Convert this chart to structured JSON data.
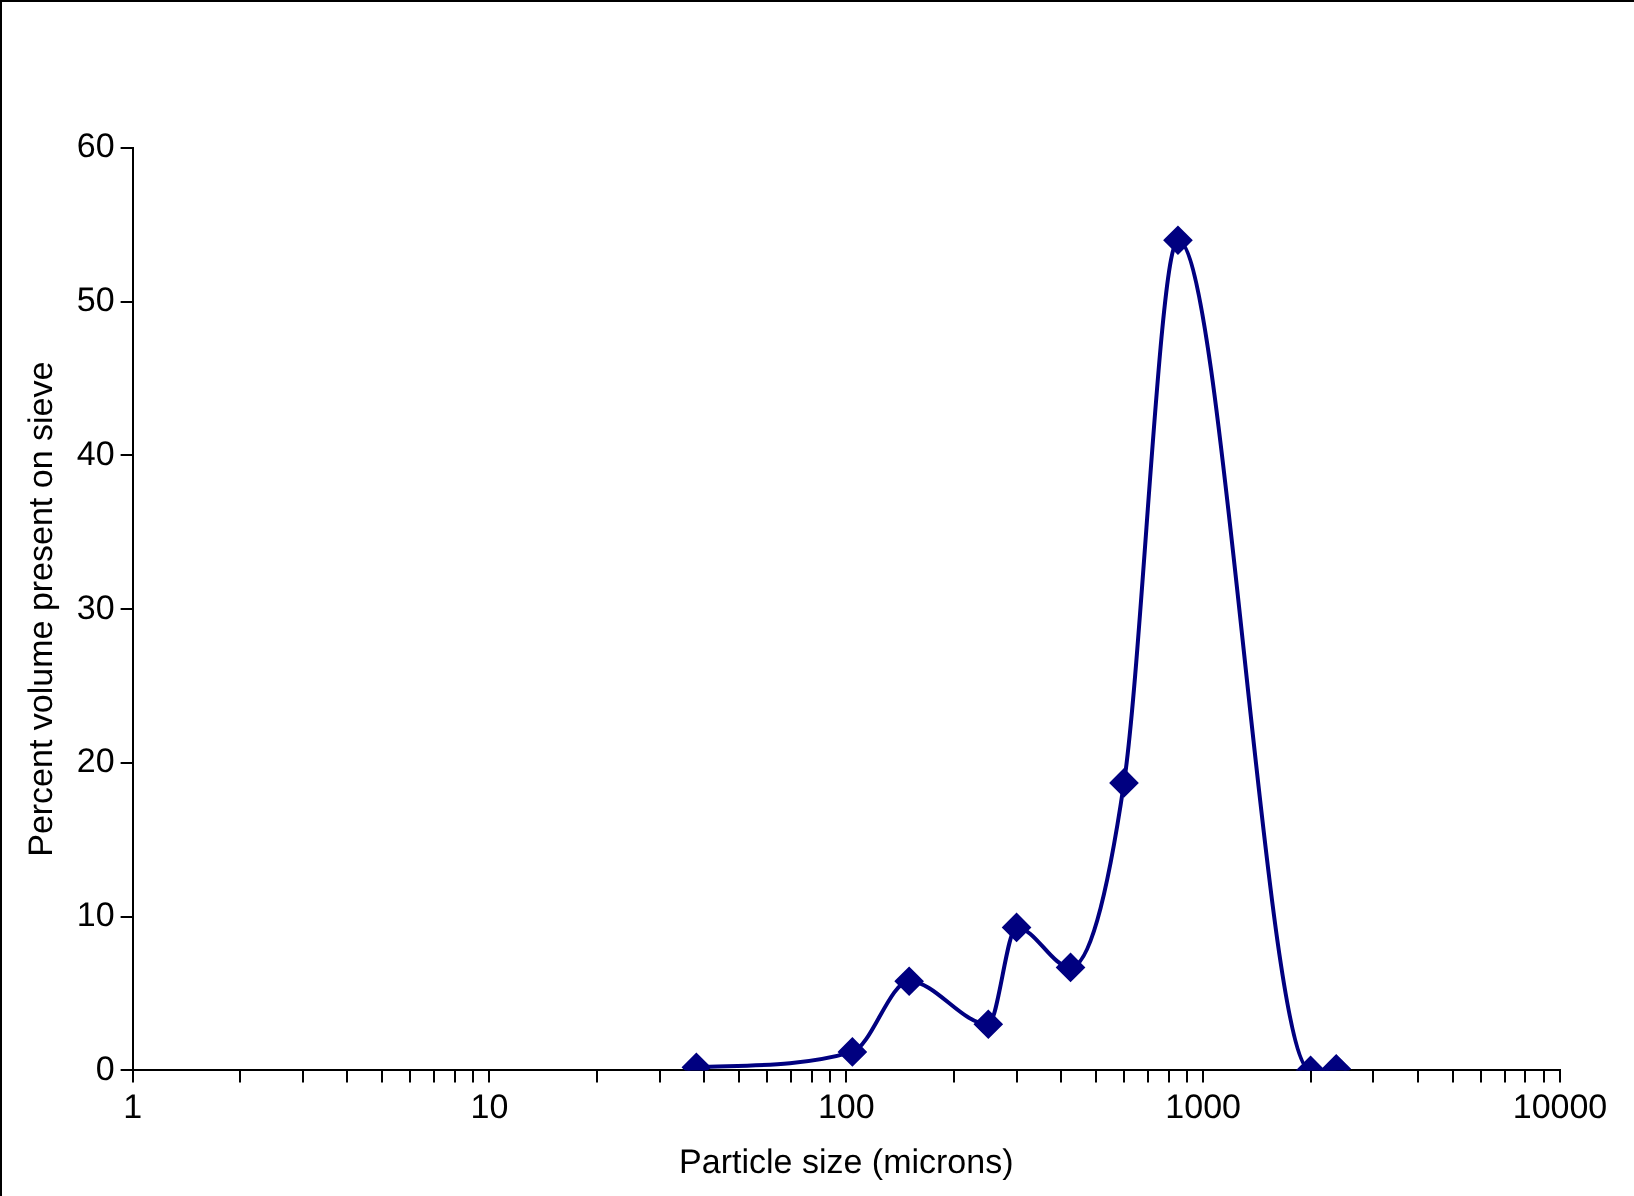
{
  "chart_data": {
    "type": "line",
    "xlabel": "Particle size (microns)",
    "ylabel": "Percent volume present on sieve",
    "log": "x",
    "x": [
      38,
      104,
      150,
      250,
      300,
      425,
      600,
      850,
      2000,
      2360
    ],
    "series": [
      {
        "color": "#000080",
        "values": [
          0.2,
          1.2,
          5.8,
          3.0,
          9.3,
          6.7,
          18.7,
          54,
          0,
          0.1
        ]
      }
    ],
    "xlim": [
      1,
      10000
    ],
    "xticks": [
      1,
      {
        "value": 2,
        "label": null
      },
      {
        "value": 3,
        "label": null
      },
      {
        "value": 4,
        "label": null
      },
      {
        "value": 5,
        "label": null
      },
      {
        "value": 6,
        "label": null
      },
      {
        "value": 7,
        "label": null
      },
      {
        "value": 8,
        "label": null
      },
      {
        "value": 9,
        "label": null
      },
      10,
      {
        "value": 20,
        "label": null
      },
      {
        "value": 30,
        "label": null
      },
      {
        "value": 40,
        "label": null
      },
      {
        "value": 50,
        "label": null
      },
      {
        "value": 60,
        "label": null
      },
      {
        "value": 70,
        "label": null
      },
      {
        "value": 80,
        "label": null
      },
      {
        "value": 90,
        "label": null
      },
      100,
      {
        "value": 200,
        "label": null
      },
      {
        "value": 300,
        "label": null
      },
      {
        "value": 400,
        "label": null
      },
      {
        "value": 500,
        "label": null
      },
      {
        "value": 600,
        "label": null
      },
      {
        "value": 700,
        "label": null
      },
      {
        "value": 800,
        "label": null
      },
      {
        "value": 900,
        "label": null
      },
      1000,
      {
        "value": 2000,
        "label": null
      },
      {
        "value": 3000,
        "label": null
      },
      {
        "value": 4000,
        "label": null
      },
      {
        "value": 5000,
        "label": null
      },
      {
        "value": 6000,
        "label": null
      },
      {
        "value": 7000,
        "label": null
      },
      {
        "value": 8000,
        "label": null
      },
      {
        "value": 9000,
        "label": null
      },
      10000
    ],
    "ylim": [
      0,
      60
    ],
    "yticks": [
      0,
      10,
      20,
      30,
      40,
      50,
      60
    ],
    "marker": "diamond",
    "line_style": "solid",
    "legend": false
  }
}
